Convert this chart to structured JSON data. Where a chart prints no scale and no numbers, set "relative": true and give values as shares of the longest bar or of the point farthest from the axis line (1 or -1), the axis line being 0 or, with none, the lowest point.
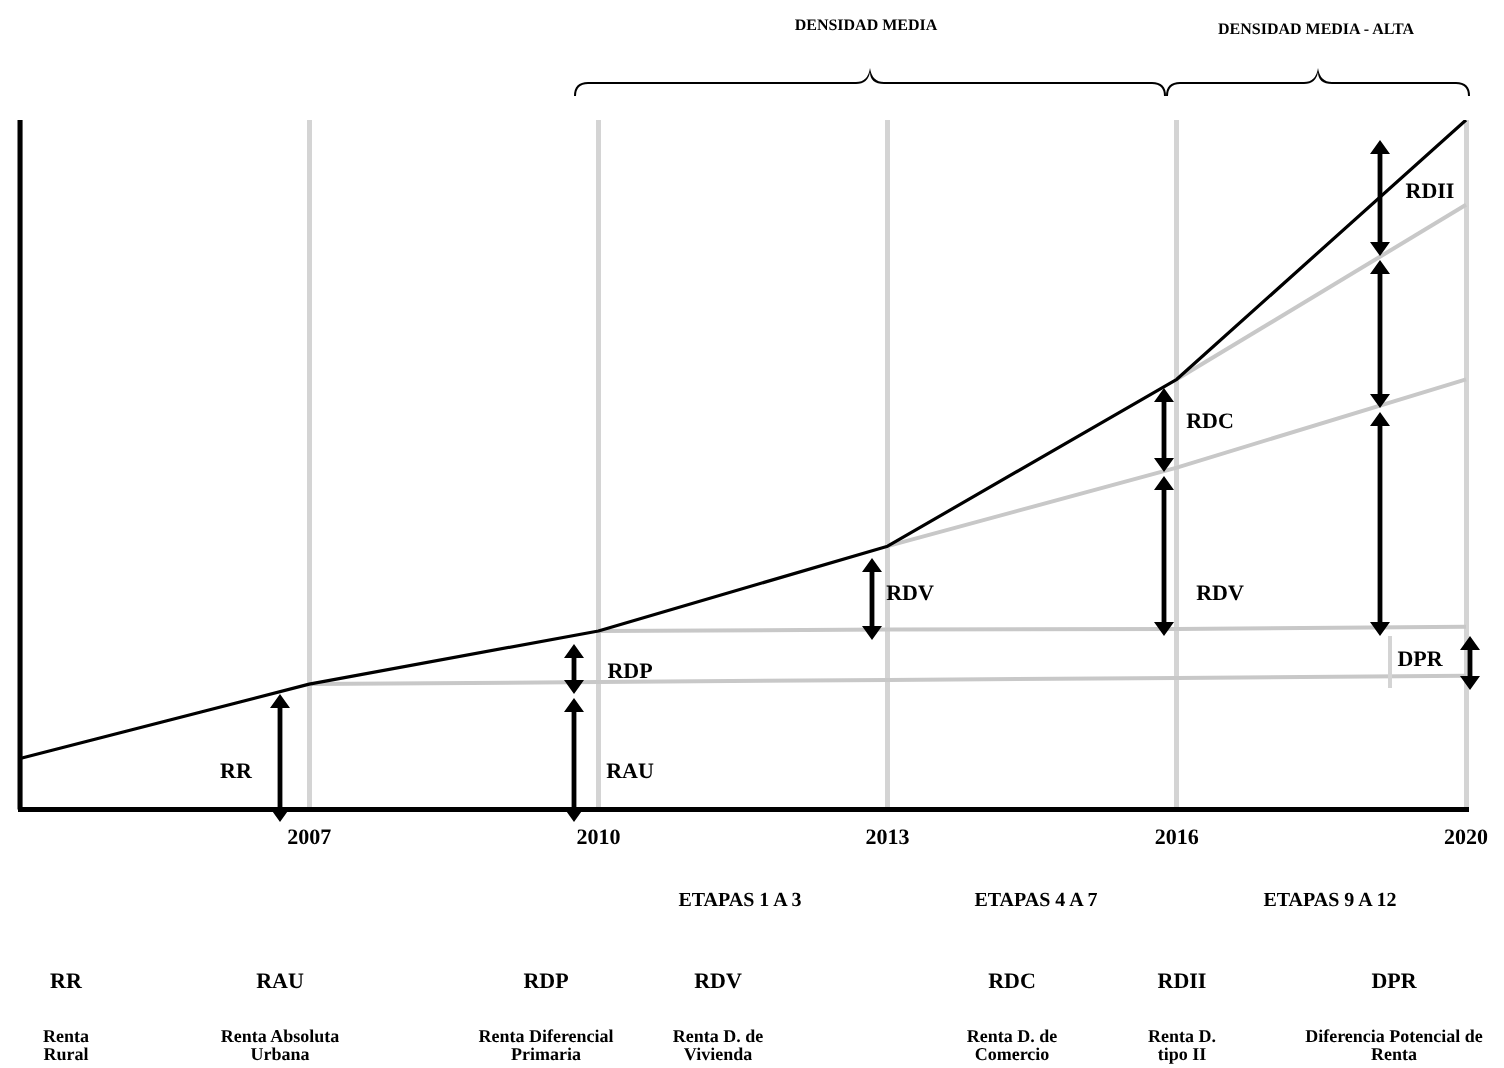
{
  "chart_data": {
    "type": "line",
    "relative": true,
    "categories": [
      null,
      "2007",
      "2010",
      "2013",
      "2016",
      "2020"
    ],
    "series": [
      {
        "color": "#000000",
        "values": [
          0.074,
          0.182,
          0.259,
          0.382,
          0.624,
          1
        ]
      },
      {
        "color": "#c8c8c8",
        "values": [
          null,
          0.182,
          0.185,
          0.188,
          0.191,
          0.194
        ]
      },
      {
        "color": "#c8c8c8",
        "values": [
          null,
          null,
          0.259,
          0.261,
          0.262,
          0.265
        ]
      },
      {
        "color": "#c8c8c8",
        "values": [
          null,
          null,
          null,
          0.382,
          0.496,
          0.624
        ]
      },
      {
        "color": "#c8c8c8",
        "values": [
          null,
          null,
          null,
          null,
          0.624,
          0.877
        ]
      }
    ],
    "grid": "x",
    "legend": false,
    "marker": "none",
    "line_style": "solid",
    "annotations": [
      "DENSIDAD MEDIA",
      "DENSIDAD MEDIA - ALTA",
      "RR",
      "RAU",
      "RDP",
      "RDV",
      "RDC",
      "RDV",
      "RDII",
      "DPR",
      "ETAPAS 1 A 3",
      "ETAPAS 4 A 7",
      "ETAPAS 9 A 12",
      "RR",
      "Renta Rural",
      "RAU",
      "Renta Absoluta Urbana",
      "RDP",
      "Renta Diferencial Primaria",
      "RDV",
      "Renta D. de Vivienda",
      "RDC",
      "Renta D. de Comercio",
      "RDII",
      "Renta D. tipo II",
      "DPR",
      "Diferencia Potencial de Renta"
    ]
  }
}
